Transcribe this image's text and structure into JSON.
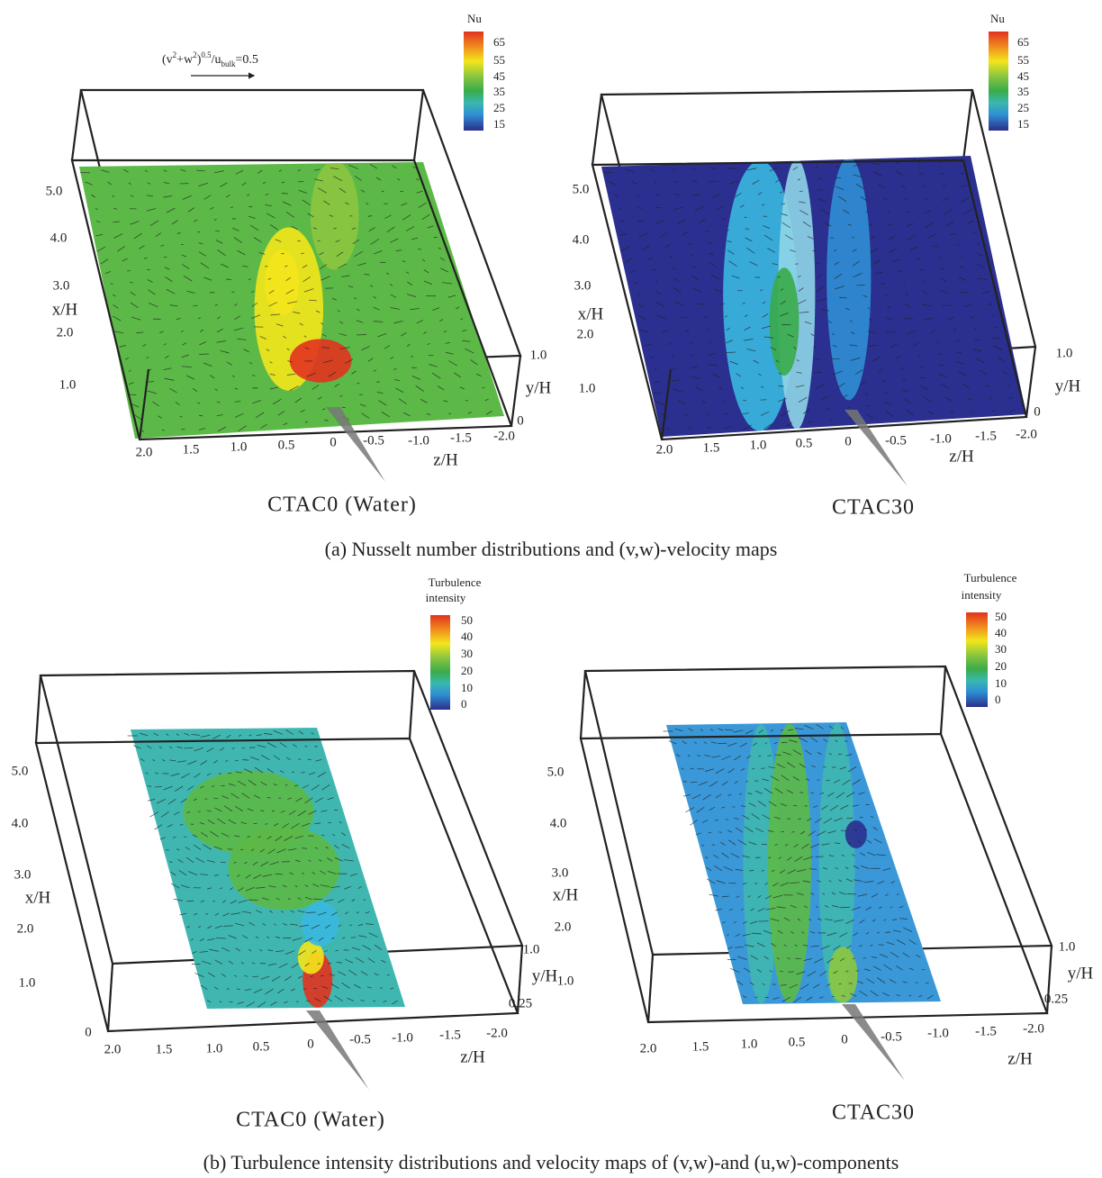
{
  "panels": [
    {
      "label": "CTAC0 (Water)",
      "colorbar": {
        "title": [
          "Nu"
        ],
        "ticks": [
          "65",
          "55",
          "45",
          "35",
          "25",
          "15"
        ]
      },
      "scale_arrow": [
        "(v",
        "2",
        "+w",
        "2",
        ")",
        "0.5",
        "/u",
        "bulk",
        "=0.5"
      ],
      "x_axis": {
        "label": "x/H",
        "ticks": [
          "5.0",
          "4.0",
          "3.0",
          "2.0",
          "1.0"
        ]
      },
      "y_axis": {
        "label": "y/H",
        "ticks": [
          "1.0",
          "0"
        ]
      },
      "z_axis": {
        "label": "z/H",
        "ticks": [
          "2.0",
          "1.5",
          "1.0",
          "0.5",
          "0",
          "-0.5",
          "-1.0",
          "-1.5",
          "-2.0"
        ]
      }
    },
    {
      "label": "CTAC30",
      "colorbar": {
        "title": [
          "Nu"
        ],
        "ticks": [
          "65",
          "55",
          "45",
          "35",
          "25",
          "15"
        ]
      },
      "x_axis": {
        "label": "x/H",
        "ticks": [
          "5.0",
          "4.0",
          "3.0",
          "2.0",
          "1.0"
        ]
      },
      "y_axis": {
        "label": "y/H",
        "ticks": [
          "1.0",
          "0"
        ]
      },
      "z_axis": {
        "label": "z/H",
        "ticks": [
          "2.0",
          "1.5",
          "1.0",
          "0.5",
          "0",
          "-0.5",
          "-1.0",
          "-1.5",
          "-2.0"
        ]
      }
    },
    {
      "label": "CTAC0 (Water)",
      "colorbar": {
        "title": [
          "Turbulence",
          "intensity"
        ],
        "ticks": [
          "50",
          "40",
          "30",
          "20",
          "10",
          "0"
        ]
      },
      "x_axis": {
        "label": "x/H",
        "ticks": [
          "5.0",
          "4.0",
          "3.0",
          "2.0",
          "1.0",
          "0"
        ]
      },
      "y_axis": {
        "label": "y/H",
        "ticks": [
          "1.0",
          "0.25"
        ]
      },
      "z_axis": {
        "label": "z/H",
        "ticks": [
          "2.0",
          "1.5",
          "1.0",
          "0.5",
          "0",
          "-0.5",
          "-1.0",
          "-1.5",
          "-2.0"
        ]
      }
    },
    {
      "label": "CTAC30",
      "colorbar": {
        "title": [
          "Turbulence",
          "intensity"
        ],
        "ticks": [
          "50",
          "40",
          "30",
          "20",
          "10",
          "0"
        ]
      },
      "x_axis": {
        "label": "x/H",
        "ticks": [
          "5.0",
          "4.0",
          "3.0",
          "2.0",
          "1.0"
        ]
      },
      "y_axis": {
        "label": "y/H",
        "ticks": [
          "1.0",
          "0.25"
        ]
      },
      "z_axis": {
        "label": "z/H",
        "ticks": [
          "2.0",
          "1.5",
          "1.0",
          "0.5",
          "0",
          "-0.5",
          "-1.0",
          "-1.5",
          "-2.0"
        ]
      }
    }
  ],
  "captions": [
    "(a) Nusselt number distributions and (v,w)-velocity maps",
    "(b) Turbulence intensity distributions and velocity maps of (v,w)-and (u,w)-components"
  ]
}
